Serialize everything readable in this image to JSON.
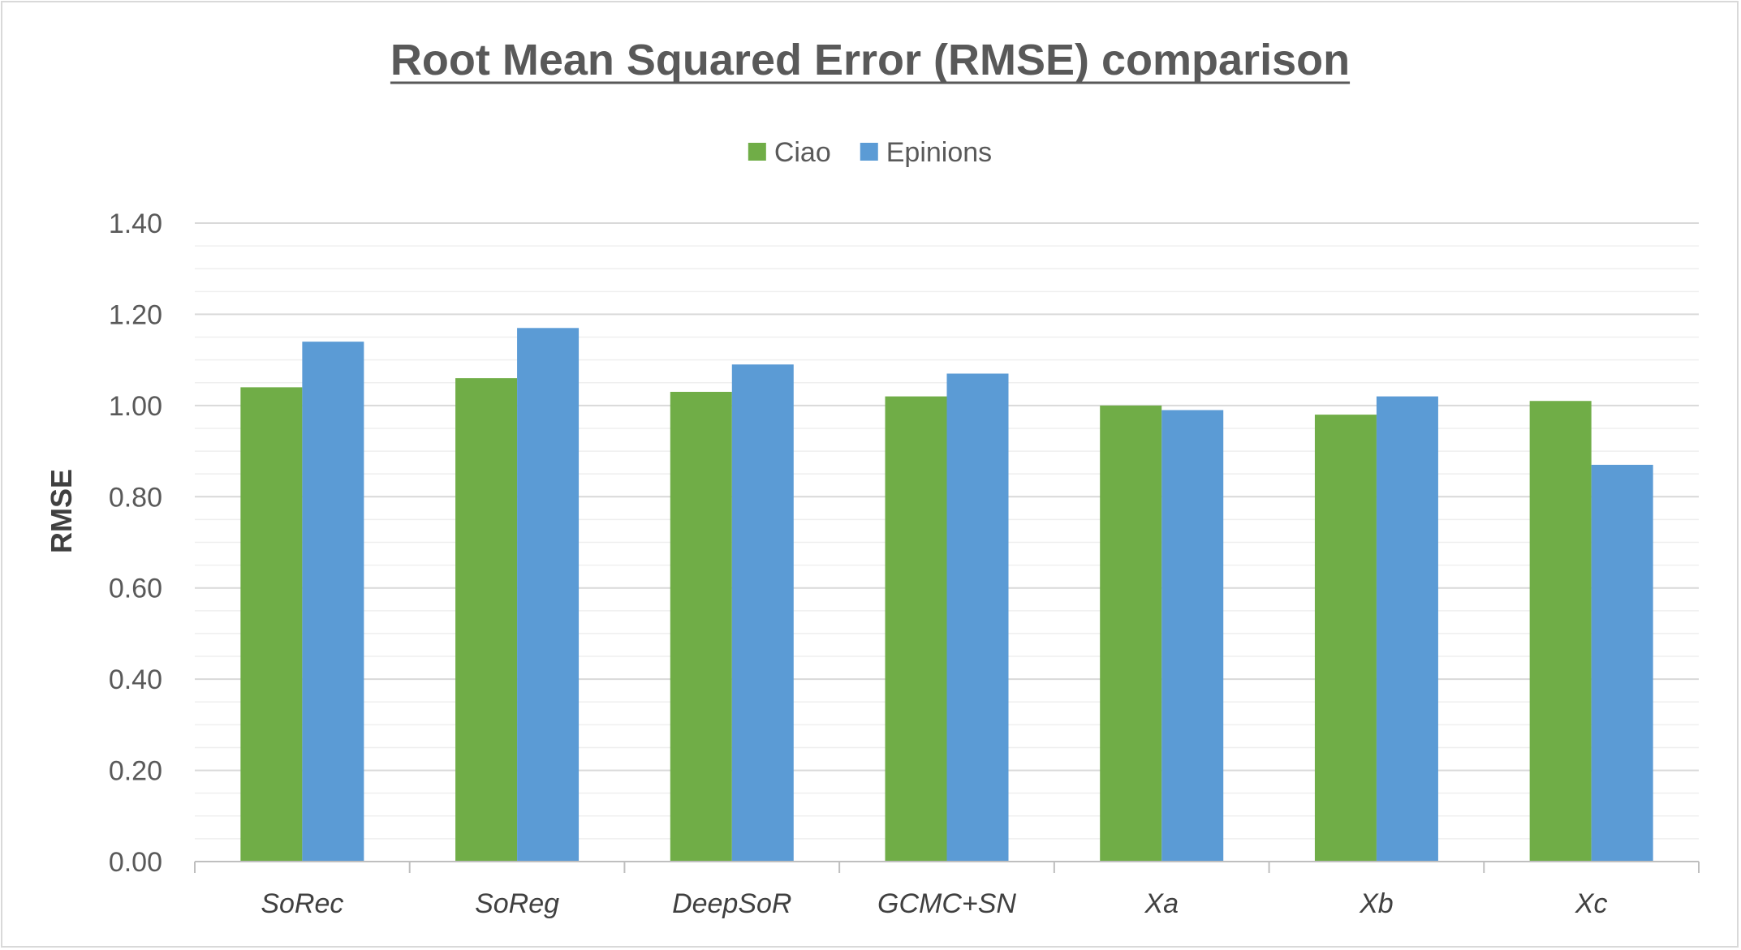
{
  "chart_data": {
    "type": "bar",
    "title": "Root Mean Squared Error (RMSE) comparison",
    "xlabel": "",
    "ylabel": "RMSE",
    "categories": [
      "SoRec",
      "SoReg",
      "DeepSoR",
      "GCMC+SN",
      "Xa",
      "Xb",
      "Xc"
    ],
    "series": [
      {
        "name": "Ciao",
        "color": "#70ad47",
        "values": [
          1.04,
          1.06,
          1.03,
          1.02,
          1.0,
          0.98,
          1.01
        ]
      },
      {
        "name": "Epinions",
        "color": "#5b9bd5",
        "values": [
          1.14,
          1.17,
          1.09,
          1.07,
          0.99,
          1.02,
          0.87
        ]
      }
    ],
    "ylim": [
      0,
      1.4
    ],
    "yticks": [
      "0.00",
      "0.20",
      "0.40",
      "0.60",
      "0.80",
      "1.00",
      "1.20",
      "1.40"
    ],
    "grid": true,
    "minor_grid": true,
    "legend_position": "top"
  }
}
